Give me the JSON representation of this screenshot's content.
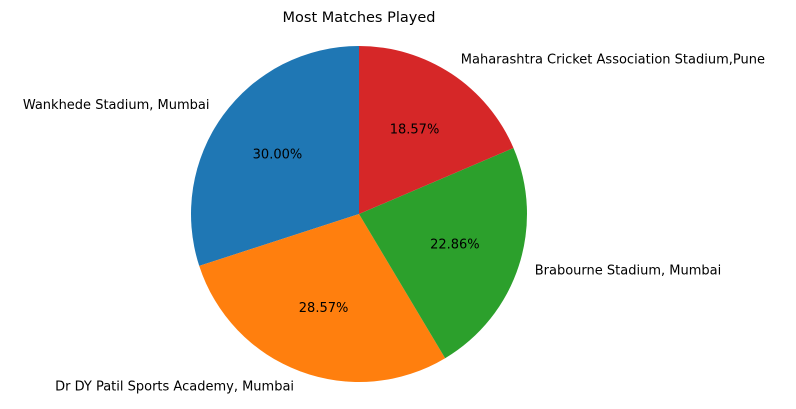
{
  "chart_data": {
    "type": "pie",
    "title": "Most Matches Played",
    "categories": [
      "Wankhede Stadium, Mumbai",
      "Dr DY Patil Sports Academy, Mumbai",
      "Brabourne Stadium, Mumbai",
      "Maharashtra Cricket Association Stadium,Pune"
    ],
    "values": [
      30.0,
      28.57,
      22.86,
      18.57
    ],
    "percent_labels": [
      "30.00%",
      "28.57%",
      "22.86%",
      "18.57%"
    ],
    "colors": [
      "#1f77b4",
      "#ff7f0e",
      "#2ca02c",
      "#d62728"
    ],
    "start_angle": 90,
    "direction": "counterclockwise"
  }
}
